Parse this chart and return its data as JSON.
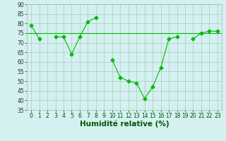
{
  "x": [
    0,
    1,
    2,
    3,
    4,
    5,
    6,
    7,
    8,
    9,
    10,
    11,
    12,
    13,
    14,
    15,
    16,
    17,
    18,
    19,
    20,
    21,
    22,
    23
  ],
  "y_main": [
    79,
    72,
    null,
    73,
    73,
    64,
    73,
    81,
    83,
    null,
    61,
    52,
    50,
    49,
    41,
    47,
    57,
    72,
    73,
    null,
    72,
    75,
    76,
    76
  ],
  "y_flat": 75,
  "line_color": "#00bb00",
  "bg_color": "#d4f0f0",
  "grid_color": "#aaccbb",
  "xlabel": "Humidité relative (%)",
  "ylim": [
    35,
    90
  ],
  "xlim": [
    -0.5,
    23.5
  ],
  "yticks": [
    35,
    40,
    45,
    50,
    55,
    60,
    65,
    70,
    75,
    80,
    85,
    90
  ],
  "xticks": [
    0,
    1,
    2,
    3,
    4,
    5,
    6,
    7,
    8,
    9,
    10,
    11,
    12,
    13,
    14,
    15,
    16,
    17,
    18,
    19,
    20,
    21,
    22,
    23
  ],
  "tick_fontsize": 5.5,
  "xlabel_fontsize": 7.5,
  "marker": "D",
  "marker_size": 2.5
}
